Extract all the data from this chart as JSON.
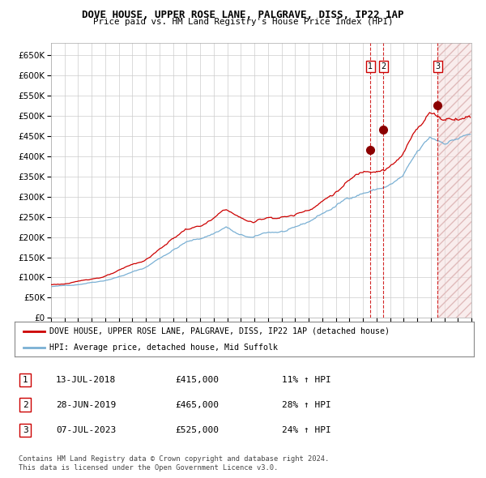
{
  "title": "DOVE HOUSE, UPPER ROSE LANE, PALGRAVE, DISS, IP22 1AP",
  "subtitle": "Price paid vs. HM Land Registry's House Price Index (HPI)",
  "legend_property": "DOVE HOUSE, UPPER ROSE LANE, PALGRAVE, DISS, IP22 1AP (detached house)",
  "legend_hpi": "HPI: Average price, detached house, Mid Suffolk",
  "footnote1": "Contains HM Land Registry data © Crown copyright and database right 2024.",
  "footnote2": "This data is licensed under the Open Government Licence v3.0.",
  "sales": [
    {
      "num": 1,
      "date": "13-JUL-2018",
      "price": 415000,
      "pct": "11%",
      "dir": "↑"
    },
    {
      "num": 2,
      "date": "28-JUN-2019",
      "price": 465000,
      "pct": "28%",
      "dir": "↑"
    },
    {
      "num": 3,
      "date": "07-JUL-2023",
      "price": 525000,
      "pct": "24%",
      "dir": "↑"
    }
  ],
  "property_color": "#cc0000",
  "hpi_color": "#7ab0d4",
  "vline_color": "#cc0000",
  "ylim": [
    0,
    680000
  ],
  "yticks": [
    0,
    50000,
    100000,
    150000,
    200000,
    250000,
    300000,
    350000,
    400000,
    450000,
    500000,
    550000,
    600000,
    650000
  ],
  "xstart": 1995,
  "xend": 2026,
  "background_color": "#ffffff",
  "grid_color": "#cccccc"
}
